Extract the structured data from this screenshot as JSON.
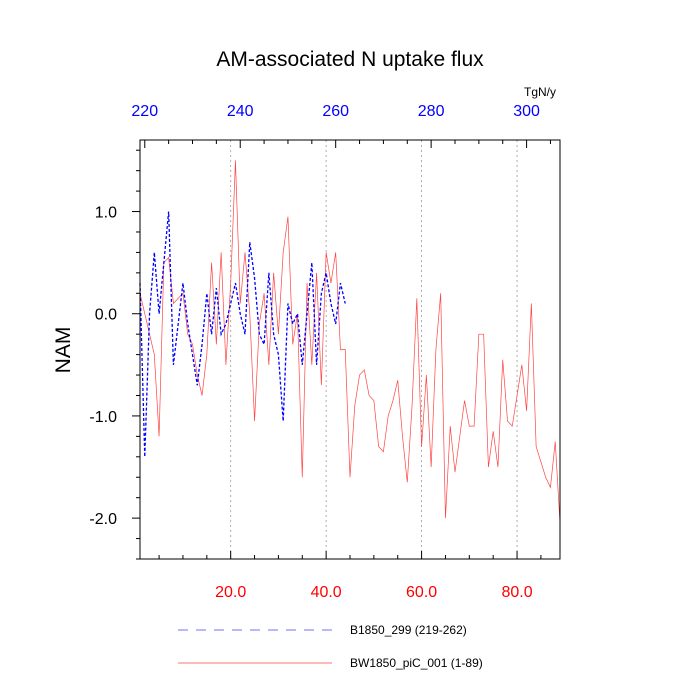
{
  "chart_data": {
    "type": "line",
    "title": "AM-associated N uptake flux",
    "ylabel": "NAM",
    "x_bottom": {
      "range": [
        1,
        89
      ],
      "ticks": [
        20,
        40,
        60,
        80
      ],
      "tick_labels": [
        "20.0",
        "40.0",
        "60.0",
        "80.0"
      ],
      "color": "#ff0000"
    },
    "x_top": {
      "range": [
        219,
        307
      ],
      "ticks": [
        220,
        240,
        260,
        280,
        300
      ],
      "tick_labels": [
        "220",
        "240",
        "260",
        "280",
        "300"
      ],
      "units": "TgN/y",
      "color": "#0000ff"
    },
    "y_axis": {
      "range": [
        -2.4,
        1.7
      ],
      "ticks": [
        1.0,
        0.0,
        -1.0,
        -2.0
      ],
      "tick_labels": [
        "1.0",
        "0.0",
        "-1.0",
        "-2.0"
      ]
    },
    "vertical_gridlines_at_bottom_x": [
      20,
      40,
      60,
      80
    ],
    "series": [
      {
        "name": "BW1850_piC_001 (1-89)",
        "axis": "bottom",
        "style": "solid",
        "color": "#ff4444",
        "x_start": 1,
        "values": [
          0.2,
          0.0,
          -0.2,
          -0.4,
          -1.2,
          0.5,
          0.55,
          0.1,
          0.15,
          0.2,
          -0.2,
          -0.3,
          -0.6,
          -0.8,
          -0.4,
          0.5,
          -0.3,
          0.6,
          -0.5,
          0.3,
          1.5,
          0.1,
          0.6,
          0.0,
          -1.05,
          -0.1,
          0.2,
          -0.5,
          0.4,
          -0.2,
          0.6,
          0.95,
          -0.3,
          0.0,
          -1.6,
          0.3,
          -0.5,
          0.4,
          -0.7,
          0.6,
          0.3,
          0.6,
          -0.35,
          -0.35,
          -1.6,
          -0.9,
          -0.6,
          -0.55,
          -0.8,
          -0.85,
          -1.3,
          -1.35,
          -1.0,
          -0.85,
          -0.65,
          -1.2,
          -1.65,
          -0.9,
          0.15,
          -1.3,
          -0.6,
          -1.5,
          -0.35,
          0.2,
          -2.0,
          -1.1,
          -1.55,
          -1.2,
          -0.85,
          -1.1,
          -1.1,
          -0.2,
          -0.2,
          -1.5,
          -1.15,
          -1.5,
          -0.45,
          -1.05,
          -1.1,
          -0.8,
          -0.5,
          -0.95,
          0.1,
          -1.3,
          -1.45,
          -1.6,
          -1.7,
          -1.25,
          -2.05
        ]
      },
      {
        "name": "B1850_299 (219-262)",
        "axis": "top",
        "style": "dashed",
        "color": "#0000ff",
        "x_start": 219,
        "values": [
          0.3,
          -1.4,
          0.0,
          0.6,
          0.0,
          0.5,
          1.0,
          -0.5,
          -0.1,
          0.3,
          -0.1,
          -0.4,
          -0.7,
          -0.3,
          0.2,
          -0.2,
          0.25,
          -0.2,
          -0.1,
          0.1,
          0.3,
          0.0,
          -0.2,
          0.7,
          0.35,
          -0.2,
          -0.3,
          0.4,
          -0.2,
          -0.4,
          -1.05,
          0.1,
          -0.1,
          0.0,
          -0.5,
          0.0,
          0.5,
          -0.5,
          0.2,
          0.4,
          0.1,
          -0.1,
          0.3,
          0.1
        ]
      }
    ],
    "legend": {
      "position": "bottom",
      "entries": [
        "B1850_299 (219-262)",
        "BW1850_piC_001 (1-89)"
      ]
    }
  }
}
